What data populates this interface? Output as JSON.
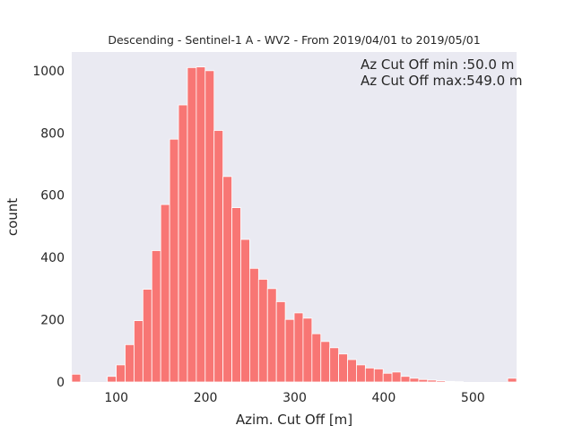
{
  "chart_data": {
    "type": "bar",
    "title": "Descending - Sentinel-1 A - WV2 - From 2019/04/01 to 2019/05/01",
    "xlabel": "Azim. Cut Off [m]",
    "ylabel": "count",
    "xlim": [
      50,
      549
    ],
    "ylim": [
      0,
      1060
    ],
    "xticks": [
      "100",
      "200",
      "300",
      "400",
      "500"
    ],
    "yticks": [
      "0",
      "200",
      "400",
      "600",
      "800",
      "1000"
    ],
    "bin_width": 9.98,
    "bin_start": 50,
    "values": [
      25,
      0,
      0,
      0,
      18,
      55,
      120,
      197,
      298,
      422,
      570,
      780,
      890,
      1010,
      1012,
      1000,
      808,
      660,
      560,
      458,
      365,
      330,
      300,
      258,
      201,
      222,
      205,
      155,
      130,
      110,
      90,
      72,
      55,
      45,
      42,
      28,
      32,
      18,
      12,
      8,
      6,
      4,
      2,
      1,
      0,
      0,
      0,
      0,
      0,
      12
    ],
    "bar_color": "#f87674",
    "background_color": "#eaeaf2",
    "grid": false,
    "annotations": [
      "Az Cut Off min :50.0 m",
      "Az Cut Off max:549.0 m"
    ]
  }
}
